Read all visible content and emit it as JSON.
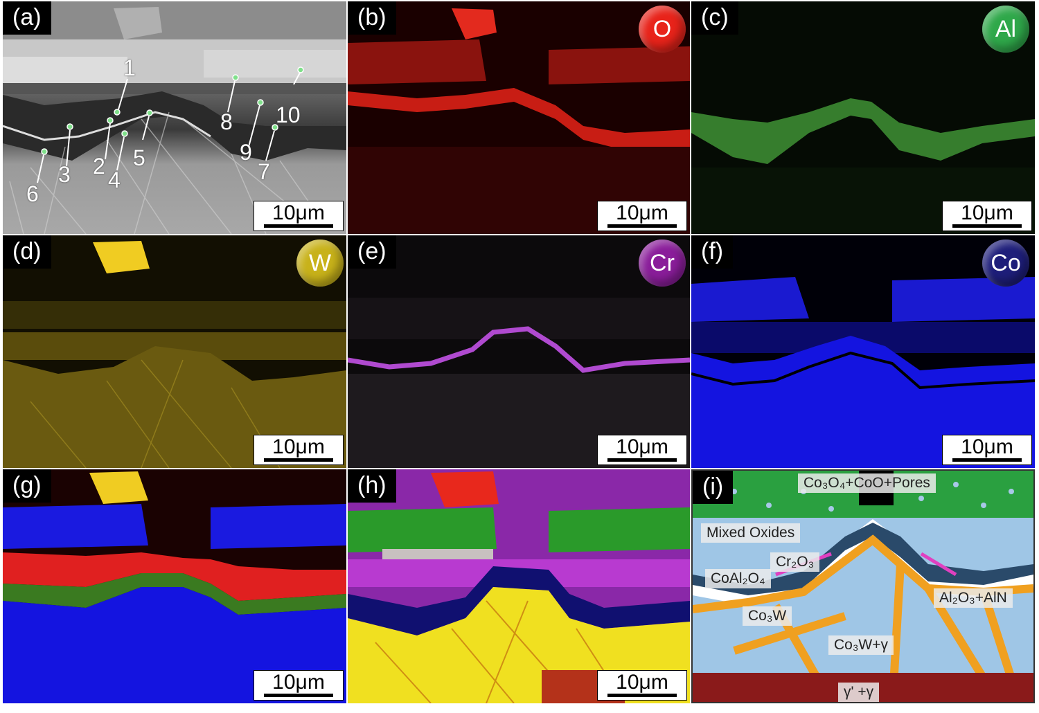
{
  "panels": [
    {
      "label": "(a)",
      "scale": "10μm"
    },
    {
      "label": "(b)",
      "scale": "10μm",
      "element": "O",
      "color": "#e8231a"
    },
    {
      "label": "(c)",
      "scale": "10μm",
      "element": "Al",
      "color": "#2fa84a"
    },
    {
      "label": "(d)",
      "scale": "10μm",
      "element": "W",
      "color": "#c8b21a"
    },
    {
      "label": "(e)",
      "scale": "10μm",
      "element": "Cr",
      "color": "#8a1d9a"
    },
    {
      "label": "(f)",
      "scale": "10μm",
      "element": "Co",
      "color": "#1e1e7a"
    },
    {
      "label": "(g)",
      "scale": "10μm"
    },
    {
      "label": "(h)",
      "scale": "10μm"
    },
    {
      "label": "(i)"
    }
  ],
  "points": [
    "1",
    "2",
    "3",
    "4",
    "5",
    "6",
    "7",
    "8",
    "9",
    "10"
  ],
  "schematic": {
    "top": "Co₃O₄+CoO+Pores",
    "mixed": "Mixed Oxides",
    "cr2o3": "Cr₂O₃",
    "coal2o4": "CoAl₂O₄",
    "al2o3": "Al₂O₃+AlN",
    "co3w": "Co₃W",
    "co3w_gamma": "Co₃W+γ",
    "gamma": "γ' +γ"
  }
}
